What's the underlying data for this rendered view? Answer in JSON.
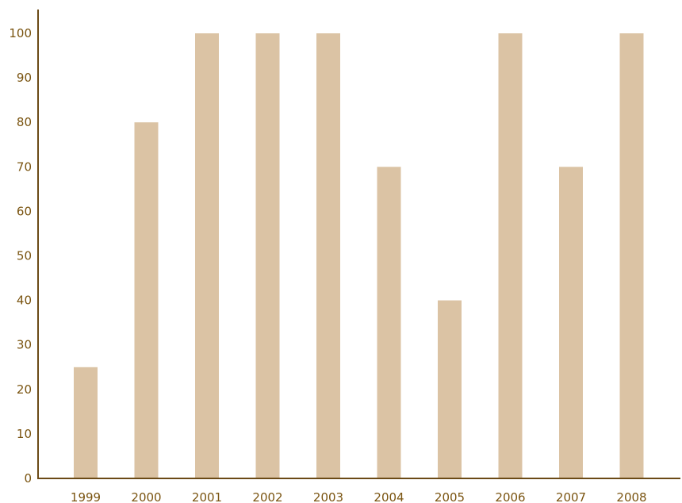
{
  "chart_data": {
    "type": "bar",
    "title": "",
    "xlabel": "",
    "ylabel": "",
    "categories": [
      "1999",
      "2000",
      "2001",
      "2002",
      "2003",
      "2004",
      "2005",
      "2006",
      "2007",
      "2008"
    ],
    "values": [
      25,
      80,
      100,
      100,
      100,
      70,
      40,
      100,
      70,
      100
    ],
    "ylim": [
      0,
      100
    ],
    "yticks": [
      "0",
      "10",
      "20",
      "30",
      "40",
      "50",
      "60",
      "70",
      "80",
      "90",
      "100"
    ],
    "grid": false,
    "legend": "none",
    "colors": {
      "bar": "#dbc3a4",
      "axis": "#6b4a16",
      "text": "#7a5410",
      "background": "#ffffff"
    }
  }
}
